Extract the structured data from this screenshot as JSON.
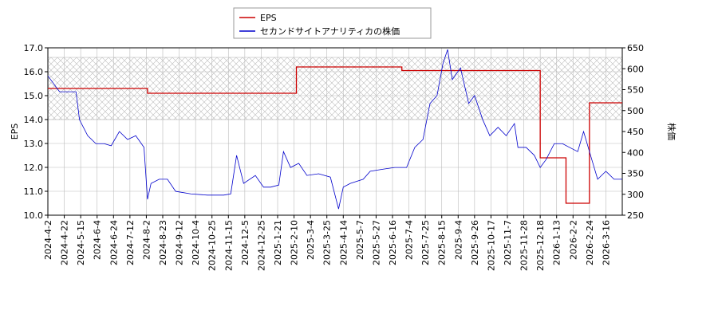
{
  "chart_data": {
    "type": "line",
    "y_label": "EPS",
    "y2_label": "株価",
    "xlim": [
      0,
      490
    ],
    "xticks": [
      {
        "value": 0,
        "label": "2024-4-2"
      },
      {
        "value": 14,
        "label": "2024-4-22"
      },
      {
        "value": 28,
        "label": "2024-5-15"
      },
      {
        "value": 42,
        "label": "2024-6-4"
      },
      {
        "value": 56,
        "label": "2024-6-24"
      },
      {
        "value": 70,
        "label": "2024-7-12"
      },
      {
        "value": 84,
        "label": "2024-8-2"
      },
      {
        "value": 98,
        "label": "2024-8-23"
      },
      {
        "value": 112,
        "label": "2024-9-12"
      },
      {
        "value": 126,
        "label": "2024-10-4"
      },
      {
        "value": 140,
        "label": "2024-10-25"
      },
      {
        "value": 154,
        "label": "2024-11-15"
      },
      {
        "value": 168,
        "label": "2024-12-5"
      },
      {
        "value": 182,
        "label": "2024-12-25"
      },
      {
        "value": 196,
        "label": "2025-1-21"
      },
      {
        "value": 210,
        "label": "2025-2-10"
      },
      {
        "value": 224,
        "label": "2025-3-4"
      },
      {
        "value": 238,
        "label": "2025-3-25"
      },
      {
        "value": 252,
        "label": "2025-4-14"
      },
      {
        "value": 266,
        "label": "2025-5-7"
      },
      {
        "value": 280,
        "label": "2025-5-27"
      },
      {
        "value": 294,
        "label": "2025-6-16"
      },
      {
        "value": 308,
        "label": "2025-7-4"
      },
      {
        "value": 322,
        "label": "2025-7-25"
      },
      {
        "value": 336,
        "label": "2025-8-15"
      },
      {
        "value": 350,
        "label": "2025-9-4"
      },
      {
        "value": 364,
        "label": "2025-9-26"
      },
      {
        "value": 378,
        "label": "2025-10-17"
      },
      {
        "value": 392,
        "label": "2025-11-7"
      },
      {
        "value": 406,
        "label": "2025-11-28"
      },
      {
        "value": 420,
        "label": "2025-12-18"
      },
      {
        "value": 434,
        "label": "2026-1-13"
      },
      {
        "value": 448,
        "label": "2026-2-2"
      },
      {
        "value": 462,
        "label": "2026-2-24"
      },
      {
        "value": 476,
        "label": "2026-3-16"
      }
    ],
    "ylim": [
      10,
      17
    ],
    "yticks": [
      {
        "value": 10,
        "label": "10.0"
      },
      {
        "value": 11,
        "label": "11.0"
      },
      {
        "value": 12,
        "label": "12.0"
      },
      {
        "value": 13,
        "label": "13.0"
      },
      {
        "value": 14,
        "label": "14.0"
      },
      {
        "value": 15,
        "label": "15.0"
      },
      {
        "value": 16,
        "label": "16.0"
      },
      {
        "value": 17,
        "label": "17.0"
      }
    ],
    "y2lim": [
      250,
      650
    ],
    "y2ticks": [
      250,
      300,
      350,
      400,
      450,
      500,
      550,
      600,
      650
    ],
    "shaded_range": [
      14.0,
      16.6
    ],
    "grid": true,
    "legend": "top",
    "series": [
      {
        "name": "EPS",
        "color": "#cc0000",
        "step": true,
        "x": [
          0,
          85,
          212,
          302,
          420,
          442,
          462
        ],
        "values": [
          15.3,
          15.1,
          16.2,
          16.05,
          12.4,
          10.5,
          14.7
        ]
      },
      {
        "name": "セカンドサイトアナリティカの株価",
        "color": "#0000cc",
        "axis": "y2",
        "x": [
          0,
          10,
          24,
          27,
          34,
          41,
          48,
          54,
          61,
          68,
          75,
          82,
          85,
          88,
          95,
          102,
          109,
          122,
          136,
          150,
          156,
          161,
          167,
          177,
          184,
          190,
          197,
          201,
          207,
          214,
          221,
          231,
          241,
          248,
          252,
          258,
          269,
          275,
          286,
          296,
          306,
          313,
          320,
          326,
          332,
          337,
          341,
          345,
          352,
          359,
          364,
          371,
          377,
          384,
          391,
          398,
          401,
          408,
          415,
          420,
          425,
          432,
          439,
          445,
          452,
          457,
          464,
          469,
          476,
          483,
          490
        ],
        "values": [
          583,
          545,
          545,
          478,
          440,
          421,
          421,
          416,
          450,
          431,
          440,
          412,
          288,
          326,
          336,
          336,
          307,
          301,
          298,
          298,
          301,
          393,
          326,
          345,
          317,
          317,
          322,
          402,
          364,
          374,
          345,
          349,
          341,
          265,
          317,
          326,
          336,
          355,
          360,
          364,
          364,
          412,
          431,
          517,
          536,
          612,
          646,
          574,
          602,
          517,
          536,
          478,
          440,
          460,
          440,
          469,
          412,
          412,
          393,
          364,
          383,
          421,
          421,
          412,
          402,
          450,
          383,
          336,
          355,
          336,
          336
        ]
      }
    ]
  }
}
